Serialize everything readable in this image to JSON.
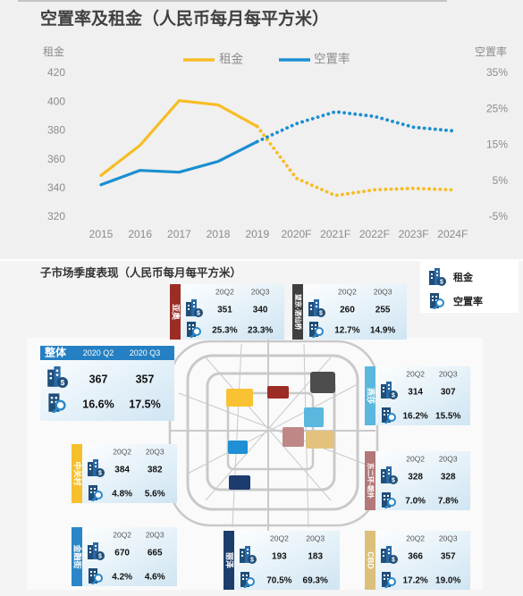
{
  "chart_data": {
    "type": "line",
    "title": "空置率及租金（人民币每月每平方米）",
    "y_label": "租金",
    "y2_label": "空置率",
    "categories": [
      "2015",
      "2016",
      "2017",
      "2018",
      "2019",
      "2020F",
      "2021F",
      "2022F",
      "2023F",
      "2024F"
    ],
    "forecast": [
      false,
      false,
      false,
      false,
      false,
      true,
      true,
      true,
      true,
      true
    ],
    "series": [
      {
        "name": "租金",
        "color": "#f7bd25",
        "values": [
          349,
          370,
          401,
          398,
          383,
          347,
          335,
          339,
          340,
          339
        ]
      },
      {
        "name": "空置率",
        "color": "#1a8fd1",
        "axis": "y2",
        "values": [
          4,
          8,
          7.5,
          10.5,
          16,
          21,
          24.3,
          23,
          20,
          19
        ]
      }
    ],
    "ylim": [
      320,
      420
    ],
    "yticks": [
      320,
      340,
      360,
      380,
      400,
      420
    ],
    "y2lim": [
      -5,
      35
    ],
    "y2ticks": [
      {
        "value": -5,
        "label": "-5%"
      },
      {
        "value": 5,
        "label": "5%"
      },
      {
        "value": 15,
        "label": "15%"
      },
      {
        "value": 25,
        "label": "25%"
      },
      {
        "value": 35,
        "label": "35%"
      }
    ],
    "grid": false
  },
  "districts_panel": {
    "title": "子市场季度表现（人民币每月每平方米）",
    "legend": {
      "rent": "租金",
      "vacancy": "空置率"
    },
    "overall": {
      "name": "整体",
      "periods": [
        "2020 Q2",
        "2020 Q3"
      ],
      "rent": [
        367,
        357
      ],
      "vacancy": [
        "16.6%",
        "17.5%"
      ],
      "color": "#2580c3"
    },
    "districts": [
      {
        "name": "亚奥",
        "color": "#9b2d25",
        "periods": [
          "20Q2",
          "20Q3"
        ],
        "rent": [
          351,
          340
        ],
        "vacancy": [
          "25.3%",
          "23.3%"
        ]
      },
      {
        "name": "望京-酒仙桥",
        "color": "#3f3f3f",
        "periods": [
          "20Q2",
          "20Q3"
        ],
        "rent": [
          260,
          255
        ],
        "vacancy": [
          "12.7%",
          "14.9%"
        ]
      },
      {
        "name": "燕莎",
        "color": "#5bb7de",
        "periods": [
          "20Q2",
          "20Q3"
        ],
        "rent": [
          314,
          307
        ],
        "vacancy": [
          "16.2%",
          "15.5%"
        ]
      },
      {
        "name": "中关村",
        "color": "#f6c02c",
        "periods": [
          "20Q2",
          "20Q3"
        ],
        "rent": [
          384,
          382
        ],
        "vacancy": [
          "4.8%",
          "5.6%"
        ]
      },
      {
        "name": "东二环-朝外",
        "color": "#b47878",
        "periods": [
          "20Q2",
          "20Q3"
        ],
        "rent": [
          328,
          328
        ],
        "vacancy": [
          "7.0%",
          "7.8%"
        ]
      },
      {
        "name": "金融街",
        "color": "#2a86c8",
        "periods": [
          "20Q2",
          "20Q3"
        ],
        "rent": [
          670,
          665
        ],
        "vacancy": [
          "4.2%",
          "4.6%"
        ]
      },
      {
        "name": "丽泽",
        "color": "#1d3d6c",
        "periods": [
          "20Q2",
          "20Q3"
        ],
        "rent": [
          193,
          183
        ],
        "vacancy": [
          "70.5%",
          "69.3%"
        ]
      },
      {
        "name": "CBD",
        "color": "#dcc07a",
        "periods": [
          "20Q2",
          "20Q3"
        ],
        "rent": [
          366,
          357
        ],
        "vacancy": [
          "17.2%",
          "19.0%"
        ]
      }
    ]
  }
}
